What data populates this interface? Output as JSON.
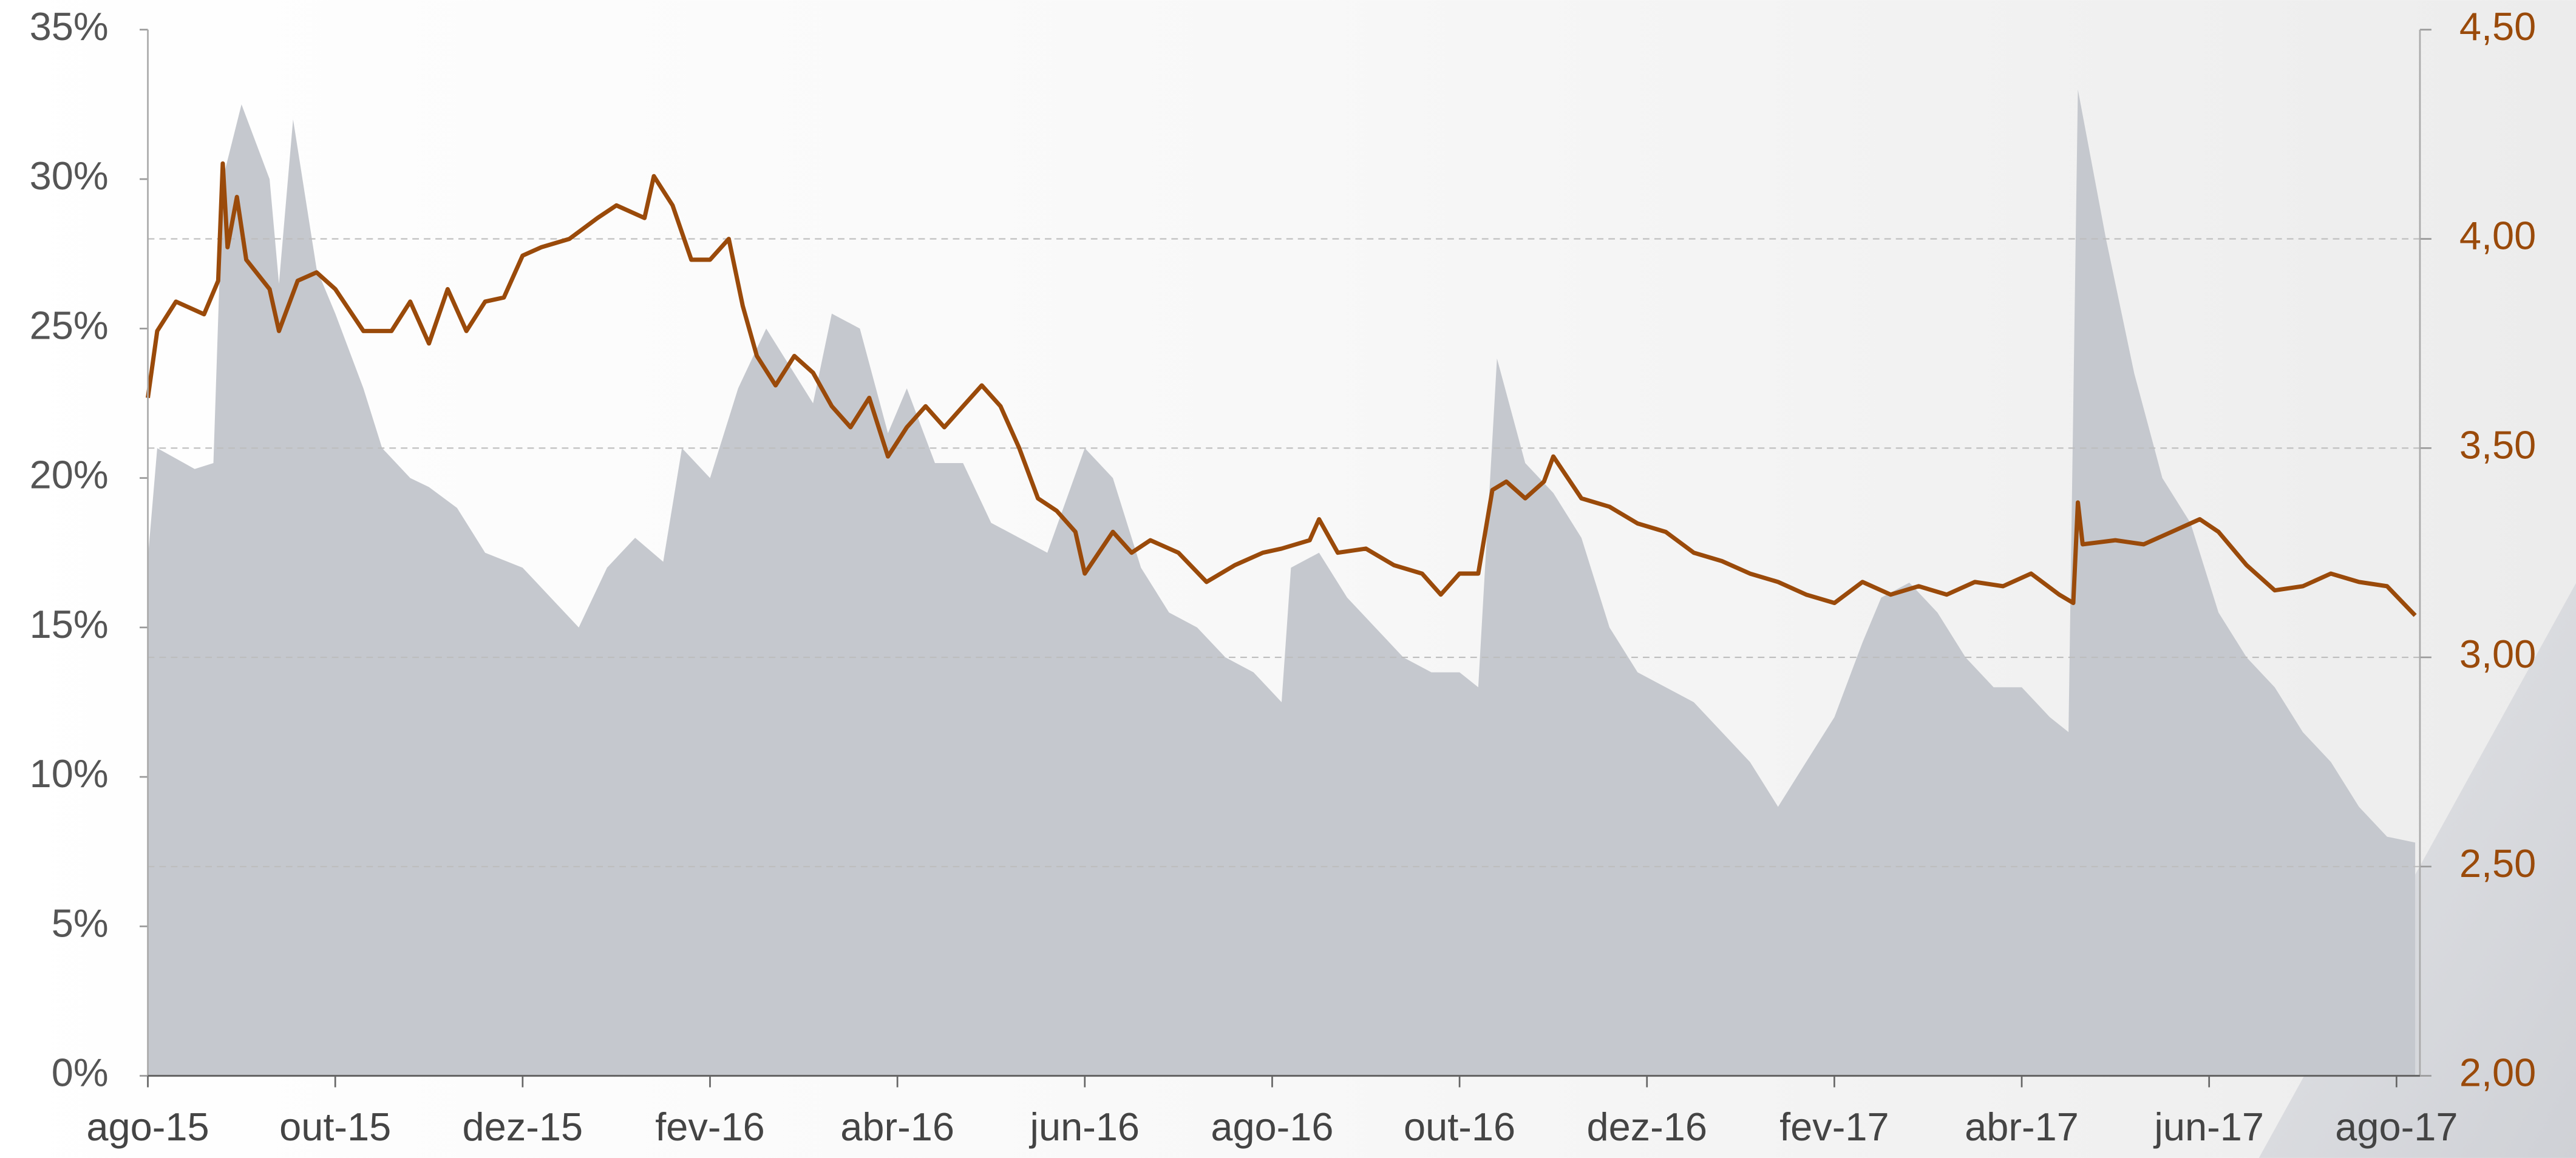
{
  "chart_data": {
    "type": "area-line",
    "xlim": [
      0,
      24.25
    ],
    "xticks": [
      {
        "value": 0,
        "label": "ago-15"
      },
      {
        "value": 2,
        "label": "out-15"
      },
      {
        "value": 4,
        "label": "dez-15"
      },
      {
        "value": 6,
        "label": "fev-16"
      },
      {
        "value": 8,
        "label": "abr-16"
      },
      {
        "value": 10,
        "label": "jun-16"
      },
      {
        "value": 12,
        "label": "ago-16"
      },
      {
        "value": 14,
        "label": "out-16"
      },
      {
        "value": 16,
        "label": "dez-16"
      },
      {
        "value": 18,
        "label": "fev-17"
      },
      {
        "value": 20,
        "label": "abr-17"
      },
      {
        "value": 22,
        "label": "jun-17"
      },
      {
        "value": 24,
        "label": "ago-17"
      }
    ],
    "ylim": [
      0,
      35
    ],
    "yticks": [
      {
        "value": 0,
        "label": "0%"
      },
      {
        "value": 5,
        "label": "5%"
      },
      {
        "value": 10,
        "label": "10%"
      },
      {
        "value": 15,
        "label": "15%"
      },
      {
        "value": 20,
        "label": "20%"
      },
      {
        "value": 25,
        "label": "25%"
      },
      {
        "value": 30,
        "label": "30%"
      },
      {
        "value": 35,
        "label": "35%"
      }
    ],
    "y2lim": [
      2,
      4.5
    ],
    "y2ticks": [
      {
        "value": 2,
        "label": "2,00"
      },
      {
        "value": 2.5,
        "label": "2,50"
      },
      {
        "value": 3,
        "label": "3,00"
      },
      {
        "value": 3.5,
        "label": "3,50"
      },
      {
        "value": 4,
        "label": "4,00"
      },
      {
        "value": 4.5,
        "label": "4,50"
      }
    ],
    "grid": "y2",
    "series": [
      {
        "kind": "area",
        "axis": "y",
        "color": "#c5c8ce",
        "x": [
          0,
          0.1,
          0.5,
          0.7,
          0.8,
          1.0,
          1.3,
          1.4,
          1.55,
          1.8,
          2.0,
          2.3,
          2.5,
          2.8,
          3.0,
          3.3,
          3.6,
          4.0,
          4.3,
          4.6,
          4.9,
          5.2,
          5.5,
          5.7,
          6.0,
          6.3,
          6.6,
          6.9,
          7.1,
          7.3,
          7.6,
          7.9,
          8.1,
          8.4,
          8.7,
          9.0,
          9.3,
          9.6,
          10.0,
          10.3,
          10.6,
          10.9,
          11.2,
          11.5,
          11.8,
          12.1,
          12.2,
          12.5,
          12.8,
          13.1,
          13.4,
          13.7,
          14.0,
          14.2,
          14.4,
          14.7,
          15.0,
          15.3,
          15.6,
          15.9,
          16.2,
          16.5,
          16.8,
          17.1,
          17.4,
          17.7,
          18.0,
          18.3,
          18.5,
          18.8,
          19.1,
          19.4,
          19.7,
          20.0,
          20.3,
          20.5,
          20.6,
          20.9,
          21.2,
          21.5,
          21.8,
          22.1,
          22.4,
          22.7,
          23.0,
          23.3,
          23.6,
          23.9,
          24.2
        ],
        "values": [
          17.3,
          21,
          20.3,
          20.5,
          30,
          32.5,
          30,
          26.5,
          32,
          27,
          25.5,
          23,
          21,
          20,
          19.7,
          19,
          17.5,
          17,
          16,
          15,
          17,
          18,
          17.2,
          21,
          20,
          23,
          25,
          23.5,
          22.5,
          25.5,
          25,
          21.5,
          23,
          20.5,
          20.5,
          18.5,
          18,
          17.5,
          21,
          20,
          17,
          15.5,
          15,
          14,
          13.5,
          12.5,
          17,
          17.5,
          16,
          15,
          14,
          13.5,
          13.5,
          13,
          24,
          20.5,
          19.5,
          18,
          15,
          13.5,
          13,
          12.5,
          11.5,
          10.5,
          9,
          10.5,
          12,
          14.5,
          16,
          16.5,
          15.5,
          14,
          13,
          13,
          12,
          11.5,
          33,
          28,
          23.5,
          20,
          18.5,
          15.5,
          14,
          13,
          11.5,
          10.5,
          9,
          8,
          7.8
        ]
      },
      {
        "kind": "line",
        "axis": "y2",
        "color": "#9a4a0a",
        "x": [
          0,
          0.1,
          0.3,
          0.6,
          0.75,
          0.8,
          0.85,
          0.95,
          1.05,
          1.3,
          1.4,
          1.6,
          1.8,
          2.0,
          2.3,
          2.6,
          2.8,
          3.0,
          3.2,
          3.4,
          3.6,
          3.8,
          4.0,
          4.2,
          4.5,
          4.8,
          5.0,
          5.3,
          5.4,
          5.6,
          5.8,
          6.0,
          6.2,
          6.35,
          6.5,
          6.7,
          6.9,
          7.1,
          7.3,
          7.5,
          7.7,
          7.9,
          8.1,
          8.3,
          8.5,
          8.7,
          8.9,
          9.1,
          9.3,
          9.5,
          9.7,
          9.9,
          10.0,
          10.3,
          10.5,
          10.7,
          11.0,
          11.3,
          11.6,
          11.9,
          12.1,
          12.4,
          12.5,
          12.7,
          13.0,
          13.3,
          13.6,
          13.8,
          14.0,
          14.2,
          14.35,
          14.5,
          14.7,
          14.9,
          15.0,
          15.3,
          15.6,
          15.9,
          16.2,
          16.5,
          16.8,
          17.1,
          17.4,
          17.7,
          18.0,
          18.3,
          18.6,
          18.9,
          19.2,
          19.5,
          19.8,
          20.1,
          20.4,
          20.55,
          20.6,
          20.65,
          21.0,
          21.3,
          21.6,
          21.9,
          22.1,
          22.4,
          22.7,
          23.0,
          23.3,
          23.6,
          23.9,
          24.2
        ],
        "values": [
          3.62,
          3.78,
          3.85,
          3.82,
          3.9,
          4.18,
          3.98,
          4.1,
          3.95,
          3.88,
          3.78,
          3.9,
          3.92,
          3.88,
          3.78,
          3.78,
          3.85,
          3.75,
          3.88,
          3.78,
          3.85,
          3.86,
          3.96,
          3.98,
          4.0,
          4.05,
          4.08,
          4.05,
          4.15,
          4.08,
          3.95,
          3.95,
          4.0,
          3.84,
          3.72,
          3.65,
          3.72,
          3.68,
          3.6,
          3.55,
          3.62,
          3.48,
          3.55,
          3.6,
          3.55,
          3.6,
          3.65,
          3.6,
          3.5,
          3.38,
          3.35,
          3.3,
          3.2,
          3.3,
          3.25,
          3.28,
          3.25,
          3.18,
          3.22,
          3.25,
          3.26,
          3.28,
          3.33,
          3.25,
          3.26,
          3.22,
          3.2,
          3.15,
          3.2,
          3.2,
          3.4,
          3.42,
          3.38,
          3.42,
          3.48,
          3.38,
          3.36,
          3.32,
          3.3,
          3.25,
          3.23,
          3.2,
          3.18,
          3.15,
          3.13,
          3.18,
          3.15,
          3.17,
          3.15,
          3.18,
          3.17,
          3.2,
          3.15,
          3.13,
          3.37,
          3.27,
          3.28,
          3.27,
          3.3,
          3.33,
          3.3,
          3.22,
          3.16,
          3.17,
          3.2,
          3.18,
          3.17,
          3.1
        ]
      }
    ]
  }
}
